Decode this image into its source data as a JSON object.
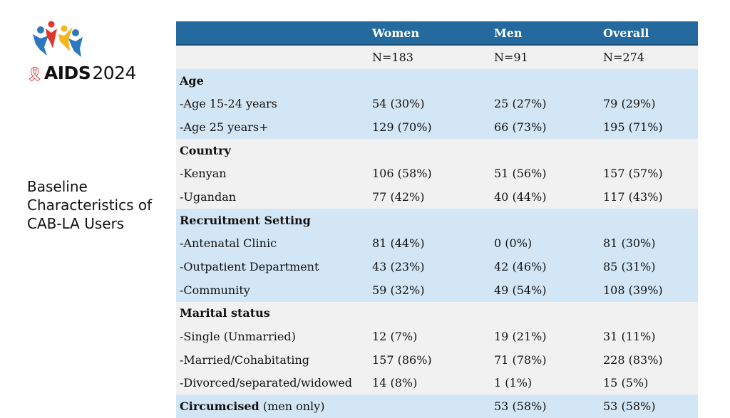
{
  "logo": {
    "icon": "aids-ribbon-icon",
    "name": "AIDS",
    "year": "2024",
    "colors": {
      "ribbon": "#d52027",
      "figure_blue": "#2d79c0",
      "figure_red": "#e2342c",
      "figure_yellow": "#f3b61b"
    }
  },
  "slide": {
    "title": "Baseline Characteristics of CAB-LA Users"
  },
  "table": {
    "header_color": "#246a9e",
    "columns": [
      "",
      "Women",
      "Men",
      "Overall"
    ],
    "totals": [
      "",
      "N=183",
      "N=91",
      "N=274"
    ],
    "groups": [
      {
        "label": "Age",
        "note": "",
        "rows": [
          [
            "-Age 15-24 years",
            "54 (30%)",
            "25 (27%)",
            "79 (29%)"
          ],
          [
            "-Age 25 years+",
            "129 (70%)",
            "66 (73%)",
            "195 (71%)"
          ]
        ]
      },
      {
        "label": "Country",
        "note": "",
        "rows": [
          [
            "-Kenyan",
            "106 (58%)",
            "51 (56%)",
            "157 (57%)"
          ],
          [
            "-Ugandan",
            "77 (42%)",
            "40 (44%)",
            "117 (43%)"
          ]
        ]
      },
      {
        "label": "Recruitment Setting",
        "note": "",
        "rows": [
          [
            "-Antenatal Clinic",
            "81 (44%)",
            "0 (0%)",
            "81 (30%)"
          ],
          [
            "-Outpatient Department",
            "43 (23%)",
            "42 (46%)",
            "85 (31%)"
          ],
          [
            "-Community",
            "59 (32%)",
            "49 (54%)",
            "108 (39%)"
          ]
        ]
      },
      {
        "label": "Marital status",
        "note": "",
        "rows": [
          [
            "-Single (Unmarried)",
            "12 (7%)",
            "19 (21%)",
            "31 (11%)"
          ],
          [
            "-Married/Cohabitating",
            "157 (86%)",
            "71 (78%)",
            "228 (83%)"
          ],
          [
            "-Divorced/separated/widowed",
            "14 (8%)",
            "1 (1%)",
            "15 (5%)"
          ]
        ]
      },
      {
        "label": "Circumcised",
        "note": " (men only)",
        "values": [
          "",
          "53 (58%)",
          "53 (58%)"
        ],
        "rows": []
      }
    ]
  }
}
